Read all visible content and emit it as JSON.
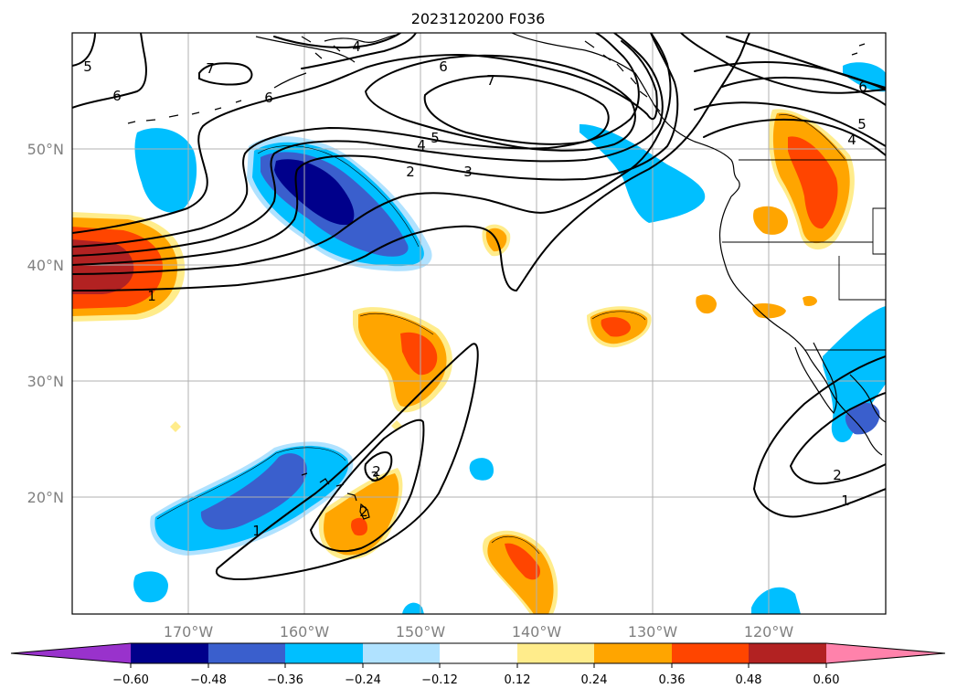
{
  "title": "2023120200 F036",
  "map": {
    "lon_range": [
      -180,
      -110
    ],
    "lat_range": [
      10,
      60
    ],
    "lon_ticks": [
      "170°W",
      "160°W",
      "150°W",
      "140°W",
      "130°W",
      "120°W"
    ],
    "lat_ticks": [
      "50°N",
      "40°N",
      "30°N",
      "20°N"
    ],
    "grid": true
  },
  "colorbar": {
    "ticks": [
      "−0.60",
      "−0.48",
      "−0.36",
      "−0.24",
      "−0.12",
      "0.12",
      "0.24",
      "0.36",
      "0.48",
      "0.60"
    ],
    "colors": [
      "#9932cc",
      "#00008b",
      "#3a5fcd",
      "#00bfff",
      "#b0e2ff",
      "#ffffff",
      "#ffec8b",
      "#ffa500",
      "#ff4500",
      "#b22222",
      "#ff82ab"
    ],
    "extend": "both"
  },
  "contour_labels": [
    {
      "text": "4"
    },
    {
      "text": "7"
    },
    {
      "text": "6"
    },
    {
      "text": "7"
    },
    {
      "text": "5"
    },
    {
      "text": "6"
    },
    {
      "text": "6"
    },
    {
      "text": "5"
    },
    {
      "text": "4"
    },
    {
      "text": "3"
    },
    {
      "text": "2"
    },
    {
      "text": "1"
    },
    {
      "text": "6"
    },
    {
      "text": "5"
    },
    {
      "text": "4"
    },
    {
      "text": "3"
    },
    {
      "text": "2"
    },
    {
      "text": "2"
    },
    {
      "text": "1"
    },
    {
      "text": "2"
    },
    {
      "text": "1"
    }
  ]
}
